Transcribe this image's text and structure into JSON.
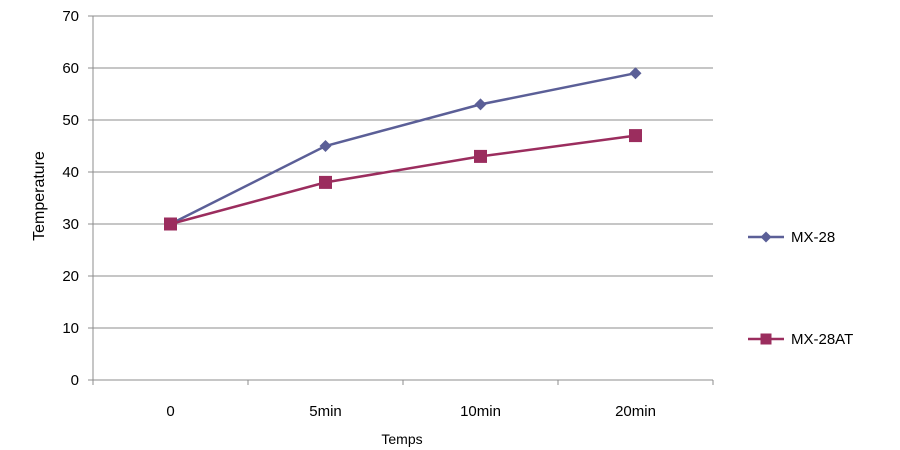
{
  "chart_data": {
    "type": "line",
    "categories": [
      "0",
      "5min",
      "10min",
      "20min"
    ],
    "series": [
      {
        "name": "MX-28",
        "values": [
          30,
          45,
          53,
          59
        ],
        "color": "#5b5f97",
        "marker": "diamond"
      },
      {
        "name": "MX-28AT",
        "values": [
          30,
          38,
          43,
          47
        ],
        "color": "#9b2d5e",
        "marker": "square"
      }
    ],
    "xlabel": "Temps",
    "ylabel": "Temperature",
    "ylim": [
      0,
      70
    ],
    "yticks": [
      "0",
      "10",
      "20",
      "30",
      "40",
      "50",
      "60",
      "70"
    ],
    "grid": true,
    "legend_position": "right"
  }
}
